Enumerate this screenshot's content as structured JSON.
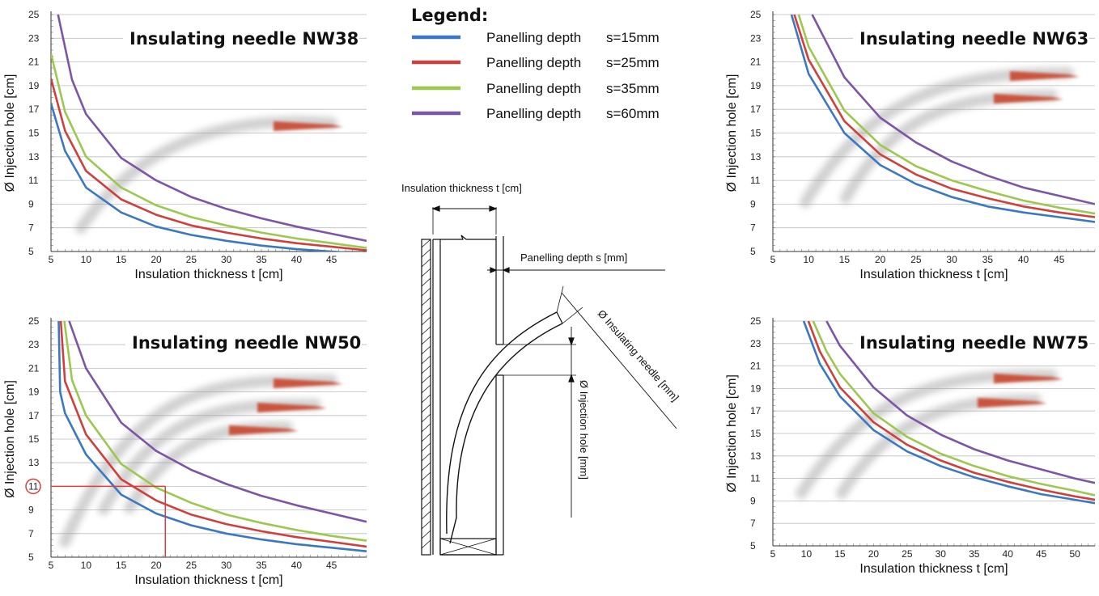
{
  "legend": {
    "title": "Legend:",
    "items": [
      {
        "label": "Panelling depth",
        "value": "s=15mm",
        "color": "#3b78c2"
      },
      {
        "label": "Panelling depth",
        "value": "s=25mm",
        "color": "#cf3f3c"
      },
      {
        "label": "Panelling depth",
        "value": "s=35mm",
        "color": "#9cc84f"
      },
      {
        "label": "Panelling depth",
        "value": "s=60mm",
        "color": "#7c55a6"
      }
    ]
  },
  "diagram": {
    "label_thickness": "Insulation thickness t [cm]",
    "label_panelling": "Panelling depth s [mm]",
    "label_needle": "Ø Insulating needle [mm]",
    "label_hole": "Ø Injection hole [mm]"
  },
  "chart_data": [
    {
      "type": "line",
      "title": "Insulating needle NW38",
      "xlabel": "Insulation thickness t [cm]",
      "ylabel": "Ø Injection hole [cm]",
      "xlim": [
        5,
        50
      ],
      "ylim": [
        5,
        25
      ],
      "xticks": [
        5,
        10,
        15,
        20,
        25,
        30,
        35,
        40,
        45
      ],
      "yticks": [
        5,
        7,
        9,
        11,
        13,
        15,
        17,
        19,
        21,
        23,
        25
      ],
      "series": [
        {
          "name": "s=15mm",
          "color": "#3b78c2",
          "x": [
            5,
            7,
            10,
            15,
            20,
            25,
            30,
            35,
            40,
            45,
            50
          ],
          "y": [
            17.5,
            13.5,
            10.4,
            8.3,
            7.1,
            6.4,
            5.9,
            5.5,
            5.2,
            5.0,
            4.8
          ]
        },
        {
          "name": "s=25mm",
          "color": "#cf3f3c",
          "x": [
            5,
            7,
            10,
            15,
            20,
            25,
            30,
            35,
            40,
            45,
            50
          ],
          "y": [
            19.6,
            15.2,
            11.8,
            9.4,
            8.1,
            7.2,
            6.6,
            6.1,
            5.7,
            5.4,
            5.1
          ]
        },
        {
          "name": "s=35mm",
          "color": "#9cc84f",
          "x": [
            5,
            7,
            10,
            15,
            20,
            25,
            30,
            35,
            40,
            45,
            50
          ],
          "y": [
            21.7,
            16.8,
            13.0,
            10.4,
            8.9,
            7.9,
            7.2,
            6.6,
            6.1,
            5.7,
            5.3
          ]
        },
        {
          "name": "s=60mm",
          "color": "#7c55a6",
          "x": [
            6,
            8,
            10,
            15,
            20,
            25,
            30,
            35,
            40,
            45,
            50
          ],
          "y": [
            25,
            19.5,
            16.6,
            12.9,
            11.0,
            9.6,
            8.6,
            7.8,
            7.1,
            6.5,
            5.9
          ]
        }
      ]
    },
    {
      "type": "line",
      "title": "Insulating needle NW50",
      "xlabel": "Insulation thickness t [cm]",
      "ylabel": "Ø Injection hole [cm]",
      "xlim": [
        5,
        50
      ],
      "ylim": [
        5,
        25
      ],
      "xticks": [
        5,
        10,
        15,
        20,
        25,
        30,
        35,
        40,
        45
      ],
      "yticks": [
        5,
        7,
        9,
        11,
        13,
        15,
        17,
        19,
        21,
        23,
        25
      ],
      "highlight": {
        "x": 21.3,
        "y": 11,
        "label": "11"
      },
      "series": [
        {
          "name": "s=15mm",
          "color": "#3b78c2",
          "x": [
            6.1,
            6.3,
            7,
            10,
            15,
            20,
            25,
            30,
            35,
            40,
            45,
            50
          ],
          "y": [
            25,
            19,
            17.2,
            13.7,
            10.3,
            8.7,
            7.7,
            7.0,
            6.5,
            6.1,
            5.8,
            5.5
          ]
        },
        {
          "name": "s=25mm",
          "color": "#cf3f3c",
          "x": [
            6.4,
            7,
            10,
            15,
            20,
            25,
            30,
            35,
            40,
            45,
            50
          ],
          "y": [
            25,
            19.9,
            15.4,
            11.6,
            9.8,
            8.6,
            7.8,
            7.2,
            6.7,
            6.3,
            5.9
          ]
        },
        {
          "name": "s=35mm",
          "color": "#9cc84f",
          "x": [
            6.9,
            8,
            10,
            15,
            20,
            25,
            30,
            35,
            40,
            45,
            50
          ],
          "y": [
            25,
            20.0,
            17.0,
            12.9,
            10.9,
            9.6,
            8.6,
            7.9,
            7.3,
            6.8,
            6.4
          ]
        },
        {
          "name": "s=60mm",
          "color": "#7c55a6",
          "x": [
            7.6,
            10,
            15,
            20,
            25,
            30,
            35,
            40,
            45,
            50
          ],
          "y": [
            25,
            21.0,
            16.4,
            14.0,
            12.4,
            11.2,
            10.2,
            9.4,
            8.7,
            8.0
          ]
        }
      ]
    },
    {
      "type": "line",
      "title": "Insulating needle NW63",
      "xlabel": "Insulation thickness t [cm]",
      "ylabel": "Ø Injection hole [cm]",
      "xlim": [
        5,
        50
      ],
      "ylim": [
        5,
        25
      ],
      "xticks": [
        5,
        10,
        15,
        20,
        25,
        30,
        35,
        40,
        45
      ],
      "yticks": [
        5,
        7,
        9,
        11,
        13,
        15,
        17,
        19,
        21,
        23,
        25
      ],
      "series": [
        {
          "name": "s=15mm",
          "color": "#3b78c2",
          "x": [
            7.6,
            10,
            15,
            20,
            25,
            30,
            35,
            40,
            45,
            50
          ],
          "y": [
            25,
            20.0,
            15.0,
            12.3,
            10.7,
            9.6,
            8.8,
            8.3,
            7.9,
            7.5
          ]
        },
        {
          "name": "s=25mm",
          "color": "#cf3f3c",
          "x": [
            8.0,
            10,
            15,
            20,
            25,
            30,
            35,
            40,
            45,
            50
          ],
          "y": [
            25,
            21.2,
            16.0,
            13.2,
            11.5,
            10.3,
            9.5,
            8.8,
            8.3,
            7.9
          ]
        },
        {
          "name": "s=35mm",
          "color": "#9cc84f",
          "x": [
            8.6,
            10,
            15,
            20,
            25,
            30,
            35,
            40,
            45,
            50
          ],
          "y": [
            25,
            22.3,
            16.9,
            14.0,
            12.2,
            11.0,
            10.1,
            9.3,
            8.7,
            8.2
          ]
        },
        {
          "name": "s=60mm",
          "color": "#7c55a6",
          "x": [
            10.5,
            15,
            20,
            25,
            30,
            35,
            40,
            45,
            50
          ],
          "y": [
            25,
            19.7,
            16.3,
            14.2,
            12.6,
            11.4,
            10.4,
            9.7,
            9.0
          ]
        }
      ]
    },
    {
      "type": "line",
      "title": "Insulating needle NW75",
      "xlabel": "Insulation thickness t [cm]",
      "ylabel": "Ø Injection hole [cm]",
      "xlim": [
        5,
        53
      ],
      "ylim": [
        5,
        25
      ],
      "xticks": [
        5,
        10,
        15,
        20,
        25,
        30,
        35,
        40,
        45,
        50
      ],
      "yticks": [
        5,
        7,
        9,
        11,
        13,
        15,
        17,
        19,
        21,
        23,
        25
      ],
      "series": [
        {
          "name": "s=15mm",
          "color": "#3b78c2",
          "x": [
            9.6,
            12,
            15,
            20,
            25,
            30,
            35,
            40,
            45,
            50,
            53
          ],
          "y": [
            25,
            21.2,
            18.3,
            15.3,
            13.4,
            12.1,
            11.1,
            10.3,
            9.6,
            9.1,
            8.8
          ]
        },
        {
          "name": "s=25mm",
          "color": "#cf3f3c",
          "x": [
            10.3,
            12,
            15,
            20,
            25,
            30,
            35,
            40,
            45,
            50,
            53
          ],
          "y": [
            25,
            22.3,
            19.1,
            16.0,
            14.0,
            12.6,
            11.5,
            10.7,
            10.0,
            9.4,
            9.1
          ]
        },
        {
          "name": "s=35mm",
          "color": "#9cc84f",
          "x": [
            11.0,
            13,
            15,
            20,
            25,
            30,
            35,
            40,
            45,
            50,
            53
          ],
          "y": [
            25,
            22.3,
            20.3,
            16.8,
            14.7,
            13.2,
            12.1,
            11.2,
            10.5,
            9.9,
            9.5
          ]
        },
        {
          "name": "s=60mm",
          "color": "#7c55a6",
          "x": [
            13.0,
            15,
            20,
            25,
            30,
            35,
            40,
            45,
            50,
            53
          ],
          "y": [
            25,
            22.8,
            19.1,
            16.6,
            14.9,
            13.6,
            12.6,
            11.8,
            11.0,
            10.6
          ]
        }
      ]
    }
  ]
}
